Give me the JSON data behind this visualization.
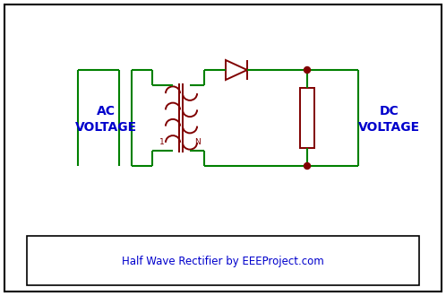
{
  "background_color": "#ffffff",
  "border_color": "#000000",
  "circuit_color": "#008000",
  "component_color": "#800000",
  "text_color_blue": "#0000cc",
  "dot_color": "#800000",
  "title_text": "Half Wave Rectifier by EEEProject.com",
  "ac_label_line1": "AC",
  "ac_label_line2": "VOLTAGE",
  "dc_label_line1": "DC",
  "dc_label_line2": "VOLTAGE",
  "transformer_label1": "1",
  "transformer_labelN": "N",
  "fig_width": 4.98,
  "fig_height": 3.3,
  "dpi": 100
}
